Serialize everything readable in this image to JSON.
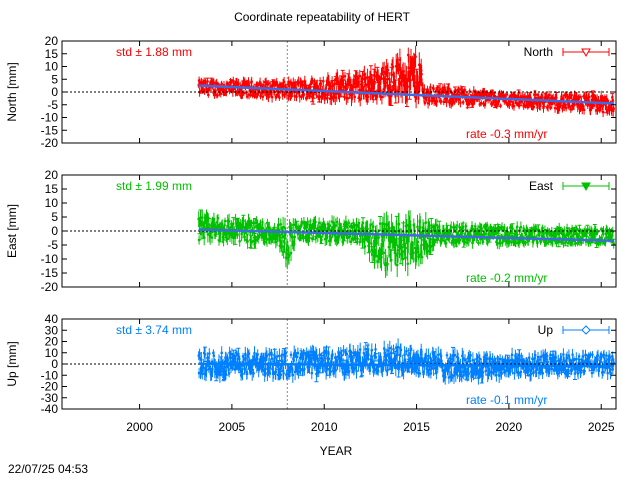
{
  "title": "Coordinate repeatability of HERT",
  "xlabel": "YEAR",
  "timestamp": "22/07/25 04:53",
  "chart_data": {
    "type": "scatter",
    "title": "Coordinate repeatability of HERT",
    "xlabel": "YEAR",
    "xlim": [
      1995.8,
      2025.8
    ],
    "xticks": [
      2000,
      2005,
      2010,
      2015,
      2020,
      2025
    ],
    "reference_epoch_dashed_line": 2008.0,
    "panels": [
      {
        "name": "North",
        "ylabel": "North [mm]",
        "ylim": [
          -20,
          20
        ],
        "yticks": [
          -20,
          -15,
          -10,
          -5,
          0,
          5,
          10,
          15,
          20
        ],
        "std_label": "std ± 1.88 mm",
        "rate_label": "rate -0.3 mm/yr",
        "color": "#ff0000",
        "trend_color": "#4169e1",
        "data_start": 2003.2,
        "data_end": 2025.7,
        "trend": [
          [
            2003.2,
            2.5
          ],
          [
            2025.7,
            -4.5
          ]
        ],
        "envelope": [
          {
            "x": 2003.2,
            "lo": -1.5,
            "hi": 5
          },
          {
            "x": 2008,
            "lo": -3,
            "hi": 4.5
          },
          {
            "x": 2012,
            "lo": -4,
            "hi": 8
          },
          {
            "x": 2013,
            "lo": -3,
            "hi": 10
          },
          {
            "x": 2014.5,
            "lo": -3,
            "hi": 16
          },
          {
            "x": 2015.2,
            "lo": -4,
            "hi": 15
          },
          {
            "x": 2015.4,
            "lo": -5,
            "hi": 3
          },
          {
            "x": 2020,
            "lo": -6,
            "hi": 0
          },
          {
            "x": 2025.7,
            "lo": -9,
            "hi": -1
          }
        ]
      },
      {
        "name": "East",
        "ylabel": "East [mm]",
        "ylim": [
          -20,
          20
        ],
        "yticks": [
          -20,
          -15,
          -10,
          -5,
          0,
          5,
          10,
          15,
          20
        ],
        "std_label": "std ± 1.99 mm",
        "rate_label": "rate -0.2 mm/yr",
        "color": "#00c000",
        "trend_color": "#4169e1",
        "data_start": 2003.2,
        "data_end": 2025.7,
        "trend": [
          [
            2003.2,
            0.5
          ],
          [
            2025.7,
            -3.5
          ]
        ],
        "envelope": [
          {
            "x": 2003.2,
            "lo": -4,
            "hi": 6
          },
          {
            "x": 2007.5,
            "lo": -5,
            "hi": 4
          },
          {
            "x": 2008,
            "lo": -12,
            "hi": 3
          },
          {
            "x": 2008.5,
            "lo": -4,
            "hi": 4
          },
          {
            "x": 2012,
            "lo": -5,
            "hi": 4
          },
          {
            "x": 2013,
            "lo": -14,
            "hi": 4
          },
          {
            "x": 2015,
            "lo": -13,
            "hi": 5
          },
          {
            "x": 2016,
            "lo": -5,
            "hi": 3
          },
          {
            "x": 2025.7,
            "lo": -5,
            "hi": 1
          }
        ]
      },
      {
        "name": "Up",
        "ylabel": "Up [mm]",
        "ylim": [
          -40,
          40
        ],
        "yticks": [
          -40,
          -30,
          -20,
          -10,
          0,
          10,
          20,
          30,
          40
        ],
        "std_label": "std ± 3.74 mm",
        "rate_label": "rate -0.1 mm/yr",
        "color": "#0080ff",
        "trend_color": "#0080ff",
        "data_start": 2003.2,
        "data_end": 2025.7,
        "trend": [
          [
            2003.2,
            0.2
          ],
          [
            2025.7,
            -2.0
          ]
        ],
        "envelope": [
          {
            "x": 2003.2,
            "lo": -12,
            "hi": 12
          },
          {
            "x": 2008,
            "lo": -12,
            "hi": 12
          },
          {
            "x": 2012,
            "lo": -10,
            "hi": 15
          },
          {
            "x": 2014,
            "lo": -8,
            "hi": 18
          },
          {
            "x": 2017,
            "lo": -15,
            "hi": 10
          },
          {
            "x": 2020,
            "lo": -12,
            "hi": 10
          },
          {
            "x": 2025.7,
            "lo": -10,
            "hi": 10
          }
        ]
      }
    ]
  }
}
